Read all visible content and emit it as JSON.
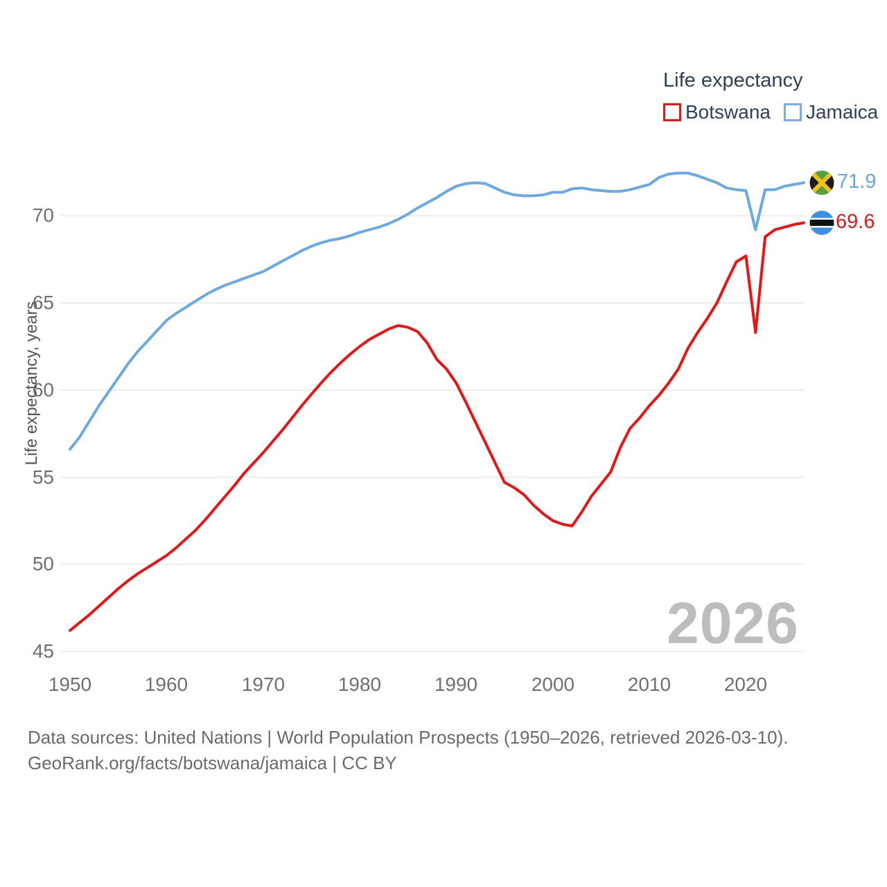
{
  "legend": {
    "title": "Life expectancy",
    "series": [
      {
        "label": "Botswana",
        "color": "#ee1313"
      },
      {
        "label": "Jamaica",
        "color": "#69a9e6"
      }
    ]
  },
  "icons": {
    "botswana": "botswana-flag-icon",
    "jamaica": "jamaica-flag-icon"
  },
  "end_labels": {
    "jamaica_value": "71.9",
    "botswana_value": "69.6"
  },
  "y_axis": {
    "title": "Life expectancy, years",
    "tick_labels": [
      "70",
      "65",
      "60",
      "55",
      "50",
      "45"
    ]
  },
  "x_axis": {
    "tick_labels": [
      "1950",
      "1960",
      "1970",
      "1980",
      "1990",
      "2000",
      "2010",
      "2020"
    ]
  },
  "watermark": {
    "text": "2026"
  },
  "footer": {
    "line1": "Data sources: United Nations | World Population Prospects (1950–2026, retrieved 2026-03-10).",
    "line2": "GeoRank.org/facts/botswana/jamaica | CC BY"
  },
  "chart_data": {
    "type": "line",
    "title": "Life expectancy",
    "xlabel": "",
    "ylabel": "Life expectancy, years",
    "x_range": [
      1950,
      2026
    ],
    "ylim": [
      45,
      73
    ],
    "grid": true,
    "grid_values": [
      45,
      50,
      55,
      60,
      65,
      70
    ],
    "legend_position": "top-right",
    "series": [
      {
        "name": "Botswana",
        "color": "#ee1313",
        "end_label": "69.6",
        "values": [
          46.2,
          46.65,
          47.1,
          47.6,
          48.1,
          48.6,
          49.05,
          49.45,
          49.8,
          50.15,
          50.5,
          50.95,
          51.45,
          51.95,
          52.55,
          53.2,
          53.85,
          54.5,
          55.2,
          55.8,
          56.4,
          57.05,
          57.7,
          58.4,
          59.1,
          59.75,
          60.4,
          61.0,
          61.55,
          62.05,
          62.5,
          62.9,
          63.2,
          63.5,
          63.7,
          63.6,
          63.35,
          62.7,
          61.75,
          61.2,
          60.4,
          59.3,
          58.15,
          57.0,
          55.85,
          54.7,
          54.4,
          54.0,
          53.4,
          52.9,
          52.5,
          52.3,
          52.2,
          53.0,
          53.9,
          54.6,
          55.3,
          56.7,
          57.8,
          58.4,
          59.1,
          59.7,
          60.4,
          61.2,
          62.4,
          63.3,
          64.1,
          65.0,
          66.2,
          67.35,
          67.7,
          63.3,
          68.8,
          69.2,
          69.35,
          69.5,
          69.6
        ]
      },
      {
        "name": "Jamaica",
        "color": "#69a9e6",
        "end_label": "71.9",
        "values": [
          56.6,
          57.3,
          58.2,
          59.1,
          59.9,
          60.7,
          61.5,
          62.2,
          62.8,
          63.4,
          64.0,
          64.4,
          64.75,
          65.1,
          65.45,
          65.75,
          66.0,
          66.2,
          66.4,
          66.6,
          66.8,
          67.1,
          67.4,
          67.7,
          68.0,
          68.25,
          68.45,
          68.6,
          68.7,
          68.85,
          69.05,
          69.2,
          69.35,
          69.55,
          69.8,
          70.1,
          70.45,
          70.75,
          71.05,
          71.4,
          71.7,
          71.85,
          71.9,
          71.85,
          71.6,
          71.35,
          71.2,
          71.15,
          71.15,
          71.2,
          71.35,
          71.35,
          71.55,
          71.6,
          71.5,
          71.45,
          71.4,
          71.4,
          71.5,
          71.65,
          71.8,
          72.2,
          72.4,
          72.45,
          72.45,
          72.3,
          72.1,
          71.9,
          71.6,
          71.5,
          71.45,
          69.2,
          71.5,
          71.5,
          71.7,
          71.8,
          71.9
        ]
      }
    ]
  }
}
